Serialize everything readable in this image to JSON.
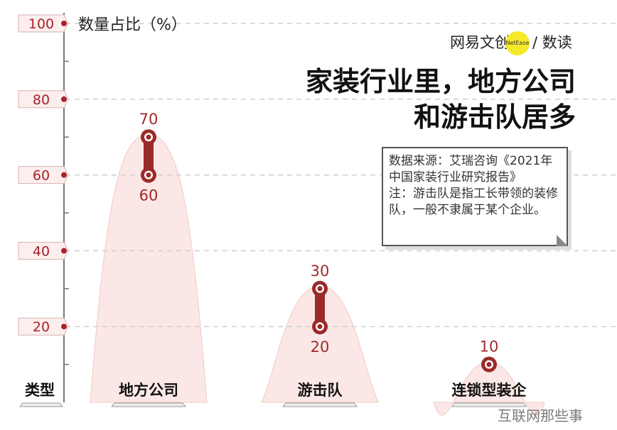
{
  "brand": {
    "name": "网易文创",
    "logo_text": "NetEase",
    "sub": "/ 数读"
  },
  "title": {
    "line1": "家装行业里，地方公司",
    "line2": "和游击队居多"
  },
  "note": {
    "source": "数据来源：艾瑞咨询《2021年中国家装行业研究报告》",
    "remark": "注：游击队是指工长带领的装修队，一般不隶属于某个企业。"
  },
  "watermark": "互联网那些事",
  "colors": {
    "accent": "#a8222b",
    "bar": "#9b2a2a",
    "bell": "#fbe8e6",
    "grid": "#cfcfcf"
  },
  "chart_data": {
    "type": "range-dot",
    "ylabel": "数量占比（%）",
    "xlabel": "类型",
    "ylim": [
      0,
      100
    ],
    "yticks": [
      "100",
      "80",
      "60",
      "40",
      "20"
    ],
    "categories": [
      "地方公司",
      "游击队",
      "连锁型装企"
    ],
    "series": [
      {
        "low": 60,
        "high": 70
      },
      {
        "low": 20,
        "high": 30
      },
      {
        "low": 10,
        "high": 10
      }
    ],
    "labels_high": [
      "70",
      "30",
      "10"
    ],
    "labels_low": [
      "60",
      "20",
      ""
    ]
  }
}
